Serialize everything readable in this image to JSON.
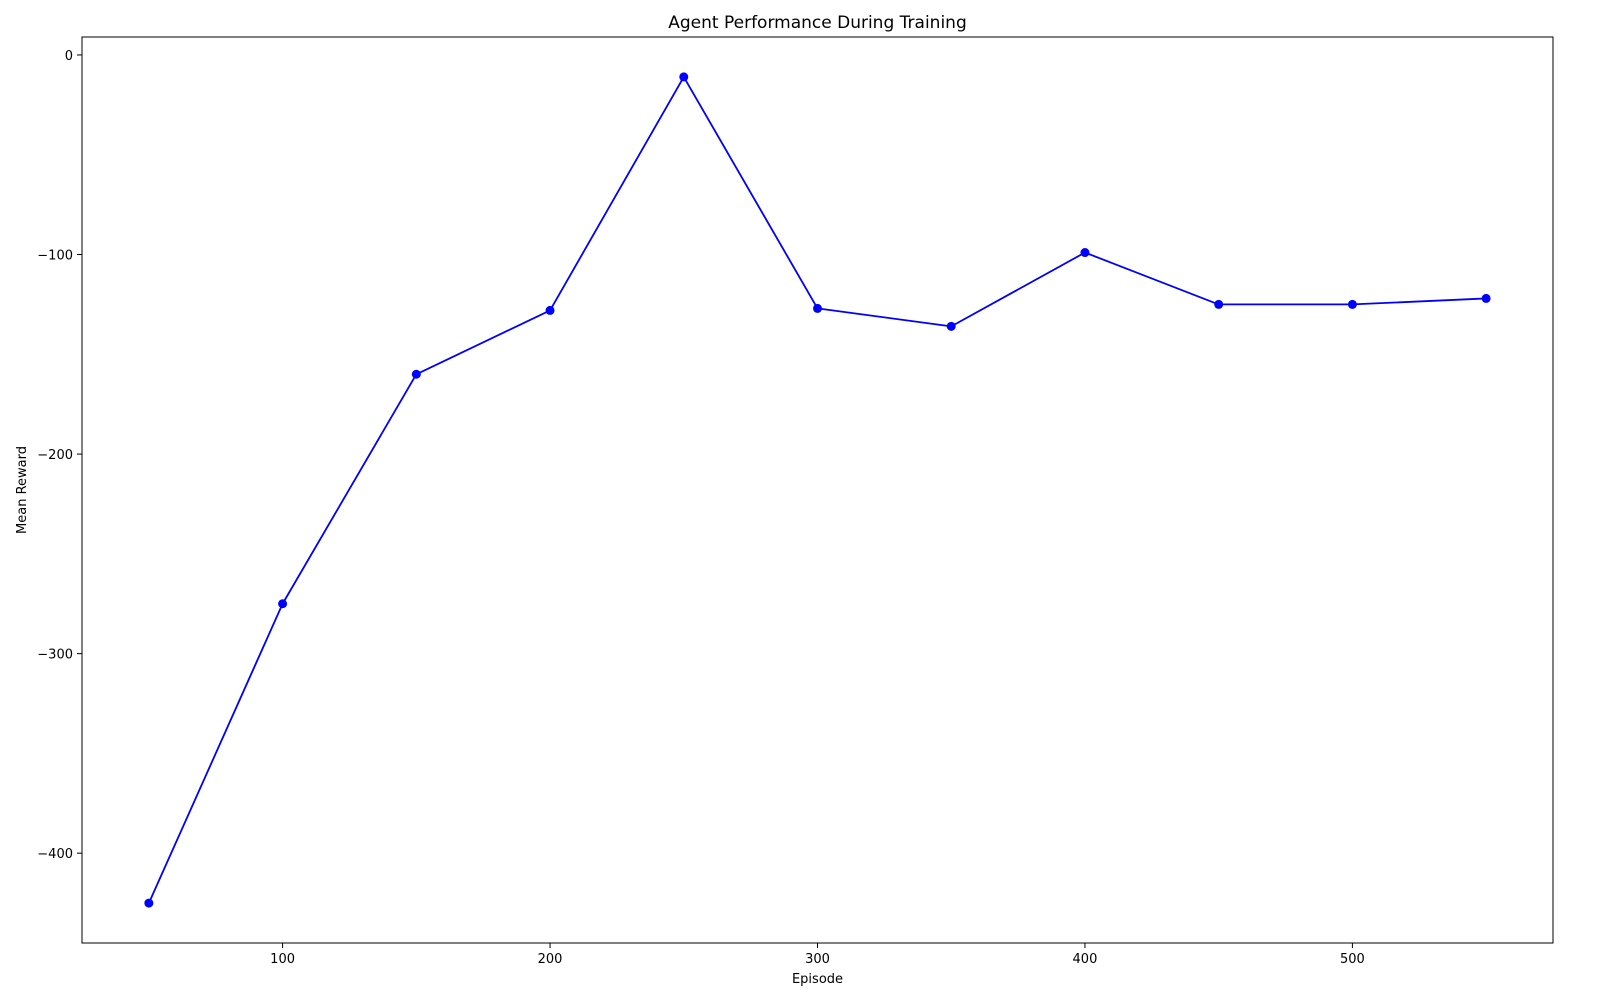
{
  "chart_data": {
    "type": "line",
    "title": "Agent Performance During Training",
    "xlabel": "Episode",
    "ylabel": "Mean Reward",
    "xlim": [
      25,
      575
    ],
    "ylim": [
      -445,
      9
    ],
    "xticks": [
      100,
      200,
      300,
      400,
      500
    ],
    "yticks": [
      0,
      -100,
      -200,
      -300,
      -400
    ],
    "xtick_labels": [
      "100",
      "200",
      "300",
      "400",
      "500"
    ],
    "ytick_labels": [
      "0",
      "−100",
      "−200",
      "−300",
      "−400"
    ],
    "grid": false,
    "legend": "none",
    "series": [
      {
        "color": "#0000ff",
        "marker": "circle",
        "x": [
          50,
          100,
          150,
          200,
          250,
          300,
          350,
          400,
          450,
          500,
          550
        ],
        "y": [
          -425,
          -275,
          -160,
          -128,
          -11,
          -127,
          -136,
          -99,
          -125,
          -125,
          -122
        ]
      }
    ]
  }
}
